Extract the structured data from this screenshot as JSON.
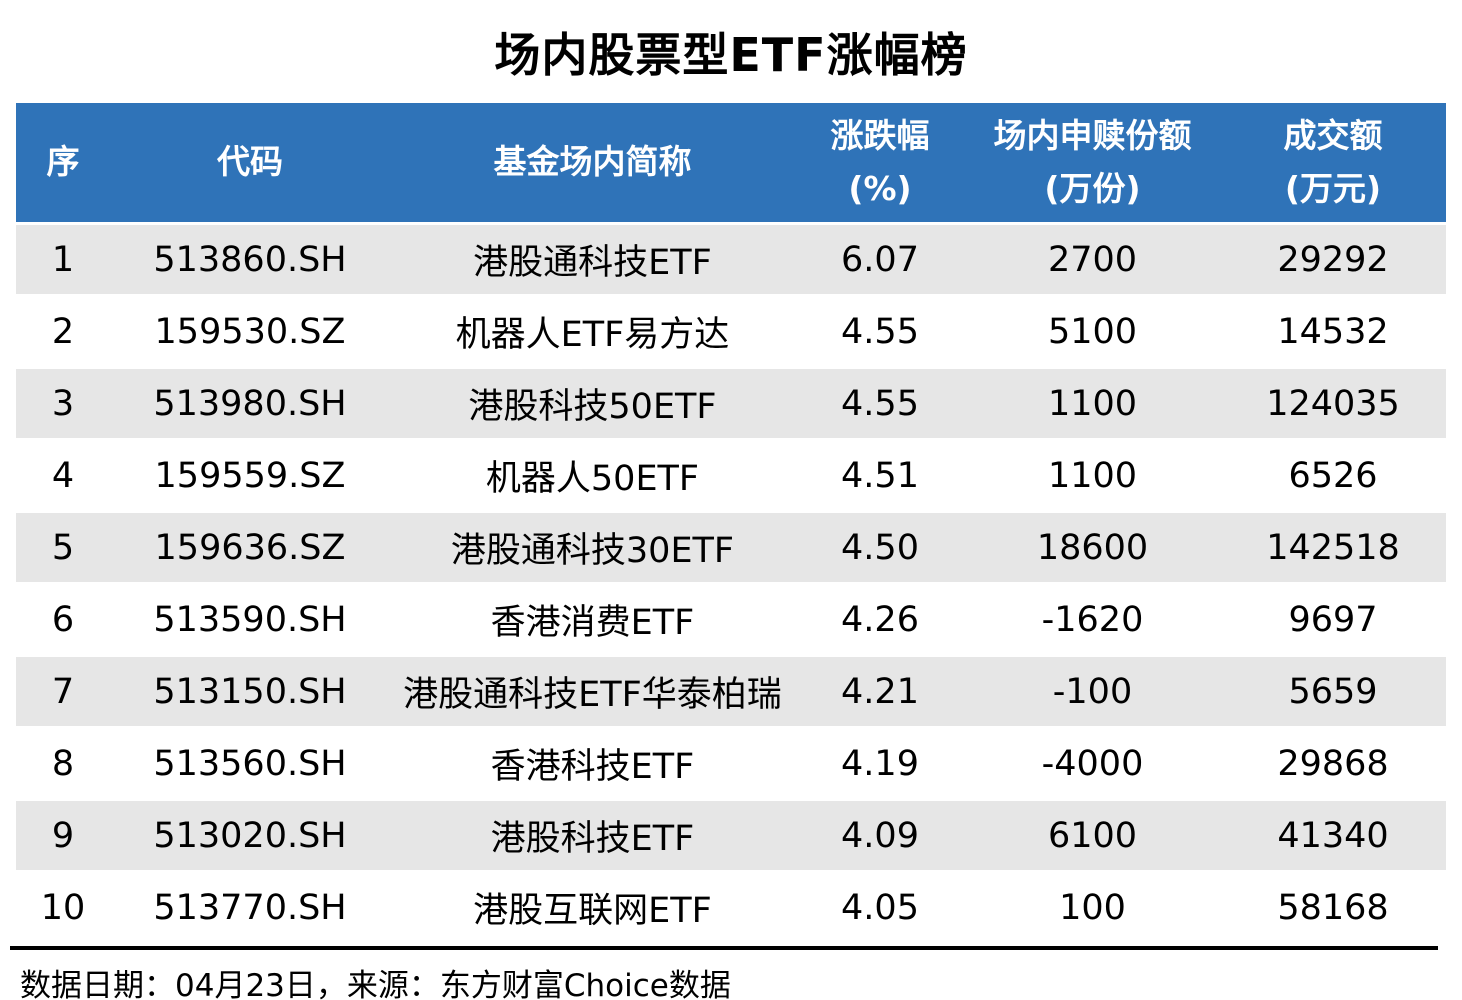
{
  "title": "场内股票型ETF涨幅榜",
  "colors": {
    "header_bg": "#2F73B8",
    "header_text": "#FFFFFF",
    "row_alt_bg": "#E6E6E6",
    "rule": "#000000"
  },
  "table": {
    "headers": [
      {
        "line1": "序",
        "line2": ""
      },
      {
        "line1": "代码",
        "line2": ""
      },
      {
        "line1": "基金场内简称",
        "line2": ""
      },
      {
        "line1": "涨跌幅",
        "line2": "(%)"
      },
      {
        "line1": "场内申赎份额",
        "line2": "(万份)"
      },
      {
        "line1": "成交额",
        "line2": "(万元)"
      }
    ],
    "rows": [
      {
        "no": "1",
        "code": "513860.SH",
        "name": "港股通科技ETF",
        "change": "6.07",
        "shares": "2700",
        "turnover": "29292"
      },
      {
        "no": "2",
        "code": "159530.SZ",
        "name": "机器人ETF易方达",
        "change": "4.55",
        "shares": "5100",
        "turnover": "14532"
      },
      {
        "no": "3",
        "code": "513980.SH",
        "name": "港股科技50ETF",
        "change": "4.55",
        "shares": "1100",
        "turnover": "124035"
      },
      {
        "no": "4",
        "code": "159559.SZ",
        "name": "机器人50ETF",
        "change": "4.51",
        "shares": "1100",
        "turnover": "6526"
      },
      {
        "no": "5",
        "code": "159636.SZ",
        "name": "港股通科技30ETF",
        "change": "4.50",
        "shares": "18600",
        "turnover": "142518"
      },
      {
        "no": "6",
        "code": "513590.SH",
        "name": "香港消费ETF",
        "change": "4.26",
        "shares": "-1620",
        "turnover": "9697"
      },
      {
        "no": "7",
        "code": "513150.SH",
        "name": "港股通科技ETF华泰柏瑞",
        "change": "4.21",
        "shares": "-100",
        "turnover": "5659"
      },
      {
        "no": "8",
        "code": "513560.SH",
        "name": "香港科技ETF",
        "change": "4.19",
        "shares": "-4000",
        "turnover": "29868"
      },
      {
        "no": "9",
        "code": "513020.SH",
        "name": "港股科技ETF",
        "change": "4.09",
        "shares": "6100",
        "turnover": "41340"
      },
      {
        "no": "10",
        "code": "513770.SH",
        "name": "港股互联网ETF",
        "change": "4.05",
        "shares": "100",
        "turnover": "58168"
      }
    ]
  },
  "footer": {
    "text": "数据日期：04月23日，来源：东方财富Choice数据"
  },
  "chart_data": {
    "type": "table",
    "title": "场内股票型ETF涨幅榜",
    "columns": [
      "序",
      "代码",
      "基金场内简称",
      "涨跌幅(%)",
      "场内申赎份额(万份)",
      "成交额(万元)"
    ],
    "rows": [
      [
        "1",
        "513860.SH",
        "港股通科技ETF",
        6.07,
        2700,
        29292
      ],
      [
        "2",
        "159530.SZ",
        "机器人ETF易方达",
        4.55,
        5100,
        14532
      ],
      [
        "3",
        "513980.SH",
        "港股科技50ETF",
        4.55,
        1100,
        124035
      ],
      [
        "4",
        "159559.SZ",
        "机器人50ETF",
        4.51,
        1100,
        6526
      ],
      [
        "5",
        "159636.SZ",
        "港股通科技30ETF",
        4.5,
        18600,
        142518
      ],
      [
        "6",
        "513590.SH",
        "香港消费ETF",
        4.26,
        -1620,
        9697
      ],
      [
        "7",
        "513150.SH",
        "港股通科技ETF华泰柏瑞",
        4.21,
        -100,
        5659
      ],
      [
        "8",
        "513560.SH",
        "香港科技ETF",
        4.19,
        -4000,
        29868
      ],
      [
        "9",
        "513020.SH",
        "港股科技ETF",
        4.09,
        6100,
        41340
      ],
      [
        "10",
        "513770.SH",
        "港股互联网ETF",
        4.05,
        100,
        58168
      ]
    ],
    "source_note": "数据日期：04月23日，来源：东方财富Choice数据"
  }
}
